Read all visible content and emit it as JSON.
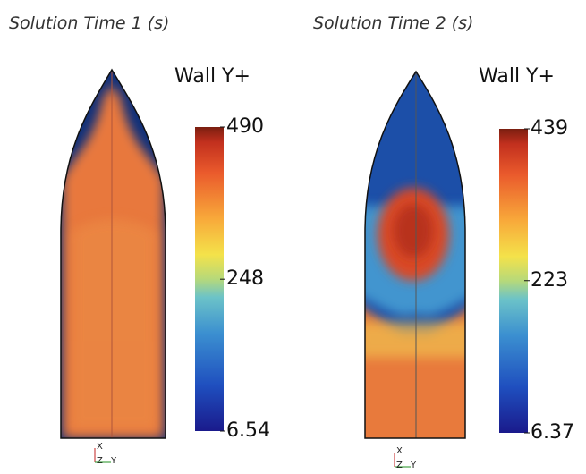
{
  "panels": [
    {
      "title": "Solution Time 1 (s)",
      "legend_title": "Wall Y+",
      "colorbar": {
        "max": 490,
        "mid": 248,
        "min": 6.54
      },
      "axes": {
        "x": "X",
        "z": "Z",
        "y": "Y"
      }
    },
    {
      "title": "Solution Time 2 (s)",
      "legend_title": "Wall Y+",
      "colorbar": {
        "max": 439,
        "mid": 223,
        "min": 6.37
      },
      "axes": {
        "x": "X",
        "z": "Z",
        "y": "Y"
      }
    }
  ]
}
